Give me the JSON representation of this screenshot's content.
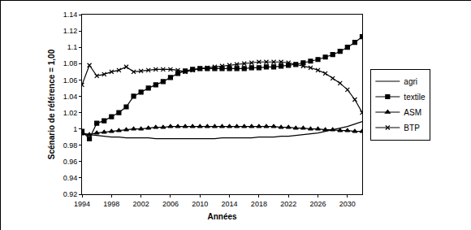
{
  "chart_data": {
    "type": "line",
    "x_label": "Années",
    "y_label": "Scénario de référence = 1,00",
    "x": [
      1994,
      1995,
      1996,
      1997,
      1998,
      1999,
      2000,
      2001,
      2002,
      2003,
      2004,
      2005,
      2006,
      2007,
      2008,
      2009,
      2010,
      2011,
      2012,
      2013,
      2014,
      2015,
      2016,
      2017,
      2018,
      2019,
      2020,
      2021,
      2022,
      2023,
      2024,
      2025,
      2026,
      2027,
      2028,
      2029,
      2030,
      2031,
      2032
    ],
    "series": [
      {
        "name": "agri",
        "color": "#000000",
        "marker": "none",
        "line_style": "solid",
        "values": [
          0.995,
          0.993,
          0.992,
          0.991,
          0.99,
          0.99,
          0.989,
          0.989,
          0.989,
          0.989,
          0.988,
          0.988,
          0.988,
          0.988,
          0.988,
          0.988,
          0.988,
          0.988,
          0.988,
          0.989,
          0.989,
          0.989,
          0.989,
          0.989,
          0.99,
          0.99,
          0.99,
          0.991,
          0.991,
          0.992,
          0.993,
          0.994,
          0.995,
          0.997,
          0.999,
          1.001,
          1.003,
          1.006,
          1.009
        ]
      },
      {
        "name": "textile",
        "color": "#000000",
        "marker": "square",
        "line_style": "solid",
        "values": [
          0.997,
          0.988,
          1.007,
          1.01,
          1.015,
          1.02,
          1.027,
          1.04,
          1.045,
          1.05,
          1.054,
          1.058,
          1.063,
          1.068,
          1.071,
          1.073,
          1.074,
          1.074,
          1.074,
          1.074,
          1.074,
          1.074,
          1.074,
          1.075,
          1.075,
          1.076,
          1.076,
          1.077,
          1.078,
          1.079,
          1.081,
          1.083,
          1.085,
          1.088,
          1.091,
          1.095,
          1.1,
          1.106,
          1.113
        ]
      },
      {
        "name": "ASM",
        "color": "#000000",
        "marker": "triangle",
        "line_style": "solid",
        "values": [
          0.994,
          0.993,
          0.995,
          0.996,
          0.997,
          0.998,
          0.999,
          1.0,
          1.0,
          1.001,
          1.002,
          1.002,
          1.003,
          1.003,
          1.003,
          1.003,
          1.003,
          1.003,
          1.003,
          1.003,
          1.003,
          1.003,
          1.003,
          1.003,
          1.003,
          1.003,
          1.003,
          1.002,
          1.002,
          1.001,
          1.001,
          1.0,
          1.0,
          0.999,
          0.999,
          0.998,
          0.998,
          0.997,
          0.997
        ]
      },
      {
        "name": "BTP",
        "color": "#000000",
        "marker": "x",
        "line_style": "solid",
        "values": [
          1.054,
          1.078,
          1.065,
          1.067,
          1.07,
          1.072,
          1.076,
          1.07,
          1.071,
          1.072,
          1.073,
          1.073,
          1.073,
          1.072,
          1.07,
          1.072,
          1.074,
          1.075,
          1.076,
          1.077,
          1.078,
          1.079,
          1.08,
          1.081,
          1.082,
          1.082,
          1.082,
          1.082,
          1.081,
          1.079,
          1.077,
          1.075,
          1.072,
          1.068,
          1.062,
          1.056,
          1.048,
          1.036,
          1.02
        ]
      }
    ],
    "xlim": [
      1994,
      2032
    ],
    "xticks": [
      1994,
      1998,
      2002,
      2006,
      2010,
      2014,
      2018,
      2022,
      2026,
      2030
    ],
    "ylim": [
      0.92,
      1.14
    ],
    "yticks": [
      0.92,
      0.94,
      0.96,
      0.98,
      1,
      1.02,
      1.04,
      1.06,
      1.08,
      1.1,
      1.12,
      1.14
    ],
    "grid": false,
    "legend": "right"
  }
}
